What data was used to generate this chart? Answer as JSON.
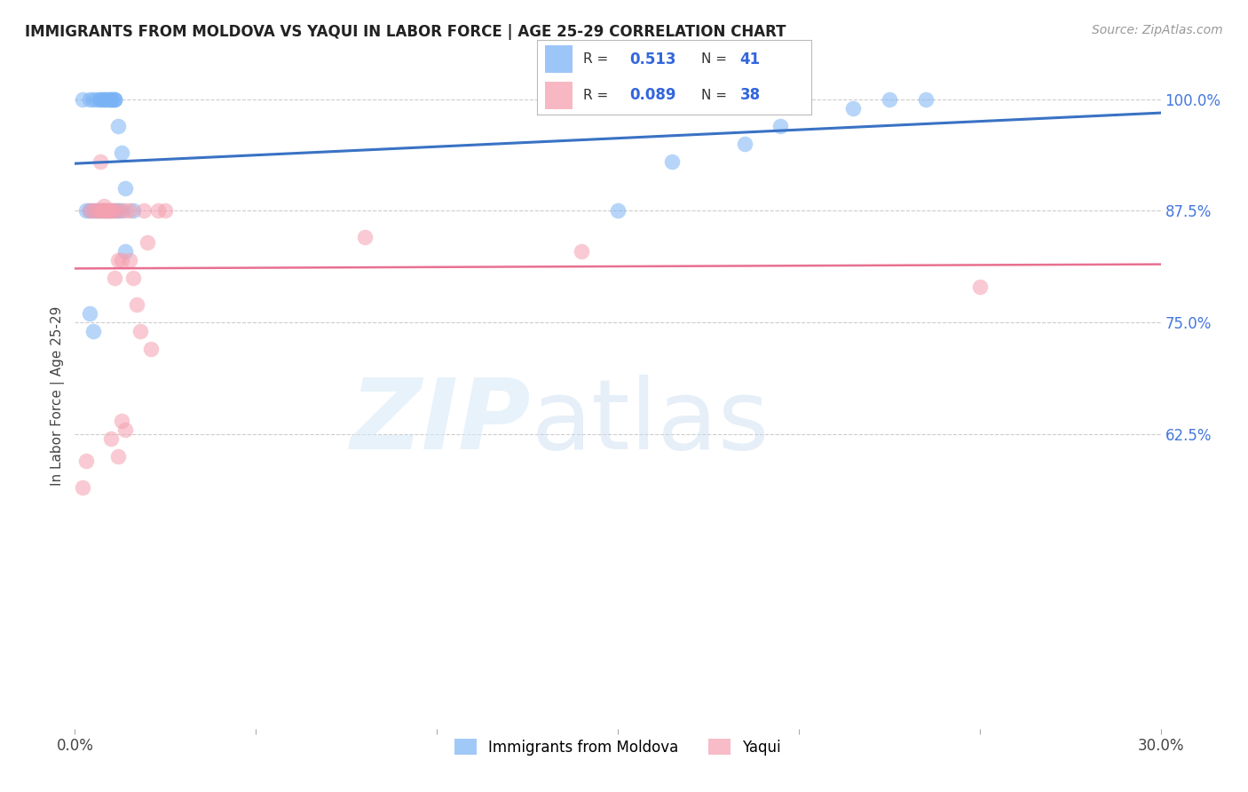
{
  "title": "IMMIGRANTS FROM MOLDOVA VS YAQUI IN LABOR FORCE | AGE 25-29 CORRELATION CHART",
  "source": "Source: ZipAtlas.com",
  "ylabel": "In Labor Force | Age 25-29",
  "legend_label1": "Immigrants from Moldova",
  "legend_label2": "Yaqui",
  "R1": "0.513",
  "N1": "41",
  "R2": "0.089",
  "N2": "38",
  "xlim": [
    0.0,
    0.3
  ],
  "ylim": [
    0.295,
    1.04
  ],
  "yticks": [
    0.625,
    0.75,
    0.875,
    1.0
  ],
  "ytick_labels": [
    "62.5%",
    "75.0%",
    "87.5%",
    "100.0%"
  ],
  "xticks": [
    0.0,
    0.05,
    0.1,
    0.15,
    0.2,
    0.25,
    0.3
  ],
  "xtick_labels": [
    "0.0%",
    "",
    "",
    "",
    "",
    "",
    "30.0%"
  ],
  "color1": "#7ab3f5",
  "color2": "#f5a0b0",
  "line_color1": "#3a72c4",
  "line_color2": "#e87090",
  "background": "#ffffff",
  "moldova_x": [
    0.002,
    0.004,
    0.005,
    0.006,
    0.007,
    0.007,
    0.008,
    0.008,
    0.009,
    0.009,
    0.01,
    0.01,
    0.01,
    0.011,
    0.011,
    0.011,
    0.012,
    0.013,
    0.014,
    0.003,
    0.004,
    0.005,
    0.006,
    0.007,
    0.008,
    0.009,
    0.01,
    0.011,
    0.012,
    0.004,
    0.005,
    0.013,
    0.014,
    0.016,
    0.15,
    0.165,
    0.185,
    0.195,
    0.215,
    0.225,
    0.235
  ],
  "moldova_y": [
    1.0,
    1.0,
    1.0,
    1.0,
    1.0,
    1.0,
    1.0,
    1.0,
    1.0,
    1.0,
    1.0,
    1.0,
    1.0,
    1.0,
    1.0,
    1.0,
    0.97,
    0.94,
    0.9,
    0.875,
    0.875,
    0.875,
    0.875,
    0.875,
    0.875,
    0.875,
    0.875,
    0.875,
    0.875,
    0.76,
    0.74,
    0.875,
    0.83,
    0.875,
    0.875,
    0.93,
    0.95,
    0.97,
    0.99,
    1.0,
    1.0
  ],
  "yaqui_x": [
    0.002,
    0.003,
    0.004,
    0.005,
    0.006,
    0.007,
    0.007,
    0.008,
    0.008,
    0.009,
    0.009,
    0.01,
    0.01,
    0.011,
    0.011,
    0.012,
    0.012,
    0.013,
    0.013,
    0.014,
    0.014,
    0.015,
    0.015,
    0.016,
    0.017,
    0.018,
    0.019,
    0.021,
    0.023,
    0.025,
    0.007,
    0.008,
    0.02,
    0.08,
    0.14,
    0.25,
    0.01,
    0.012
  ],
  "yaqui_y": [
    0.565,
    0.595,
    0.875,
    0.875,
    0.875,
    0.875,
    0.875,
    0.875,
    0.875,
    0.875,
    0.875,
    0.875,
    0.875,
    0.875,
    0.8,
    0.82,
    0.875,
    0.82,
    0.64,
    0.63,
    0.875,
    0.875,
    0.82,
    0.8,
    0.77,
    0.74,
    0.875,
    0.72,
    0.875,
    0.875,
    0.93,
    0.88,
    0.84,
    0.845,
    0.83,
    0.79,
    0.62,
    0.6
  ]
}
